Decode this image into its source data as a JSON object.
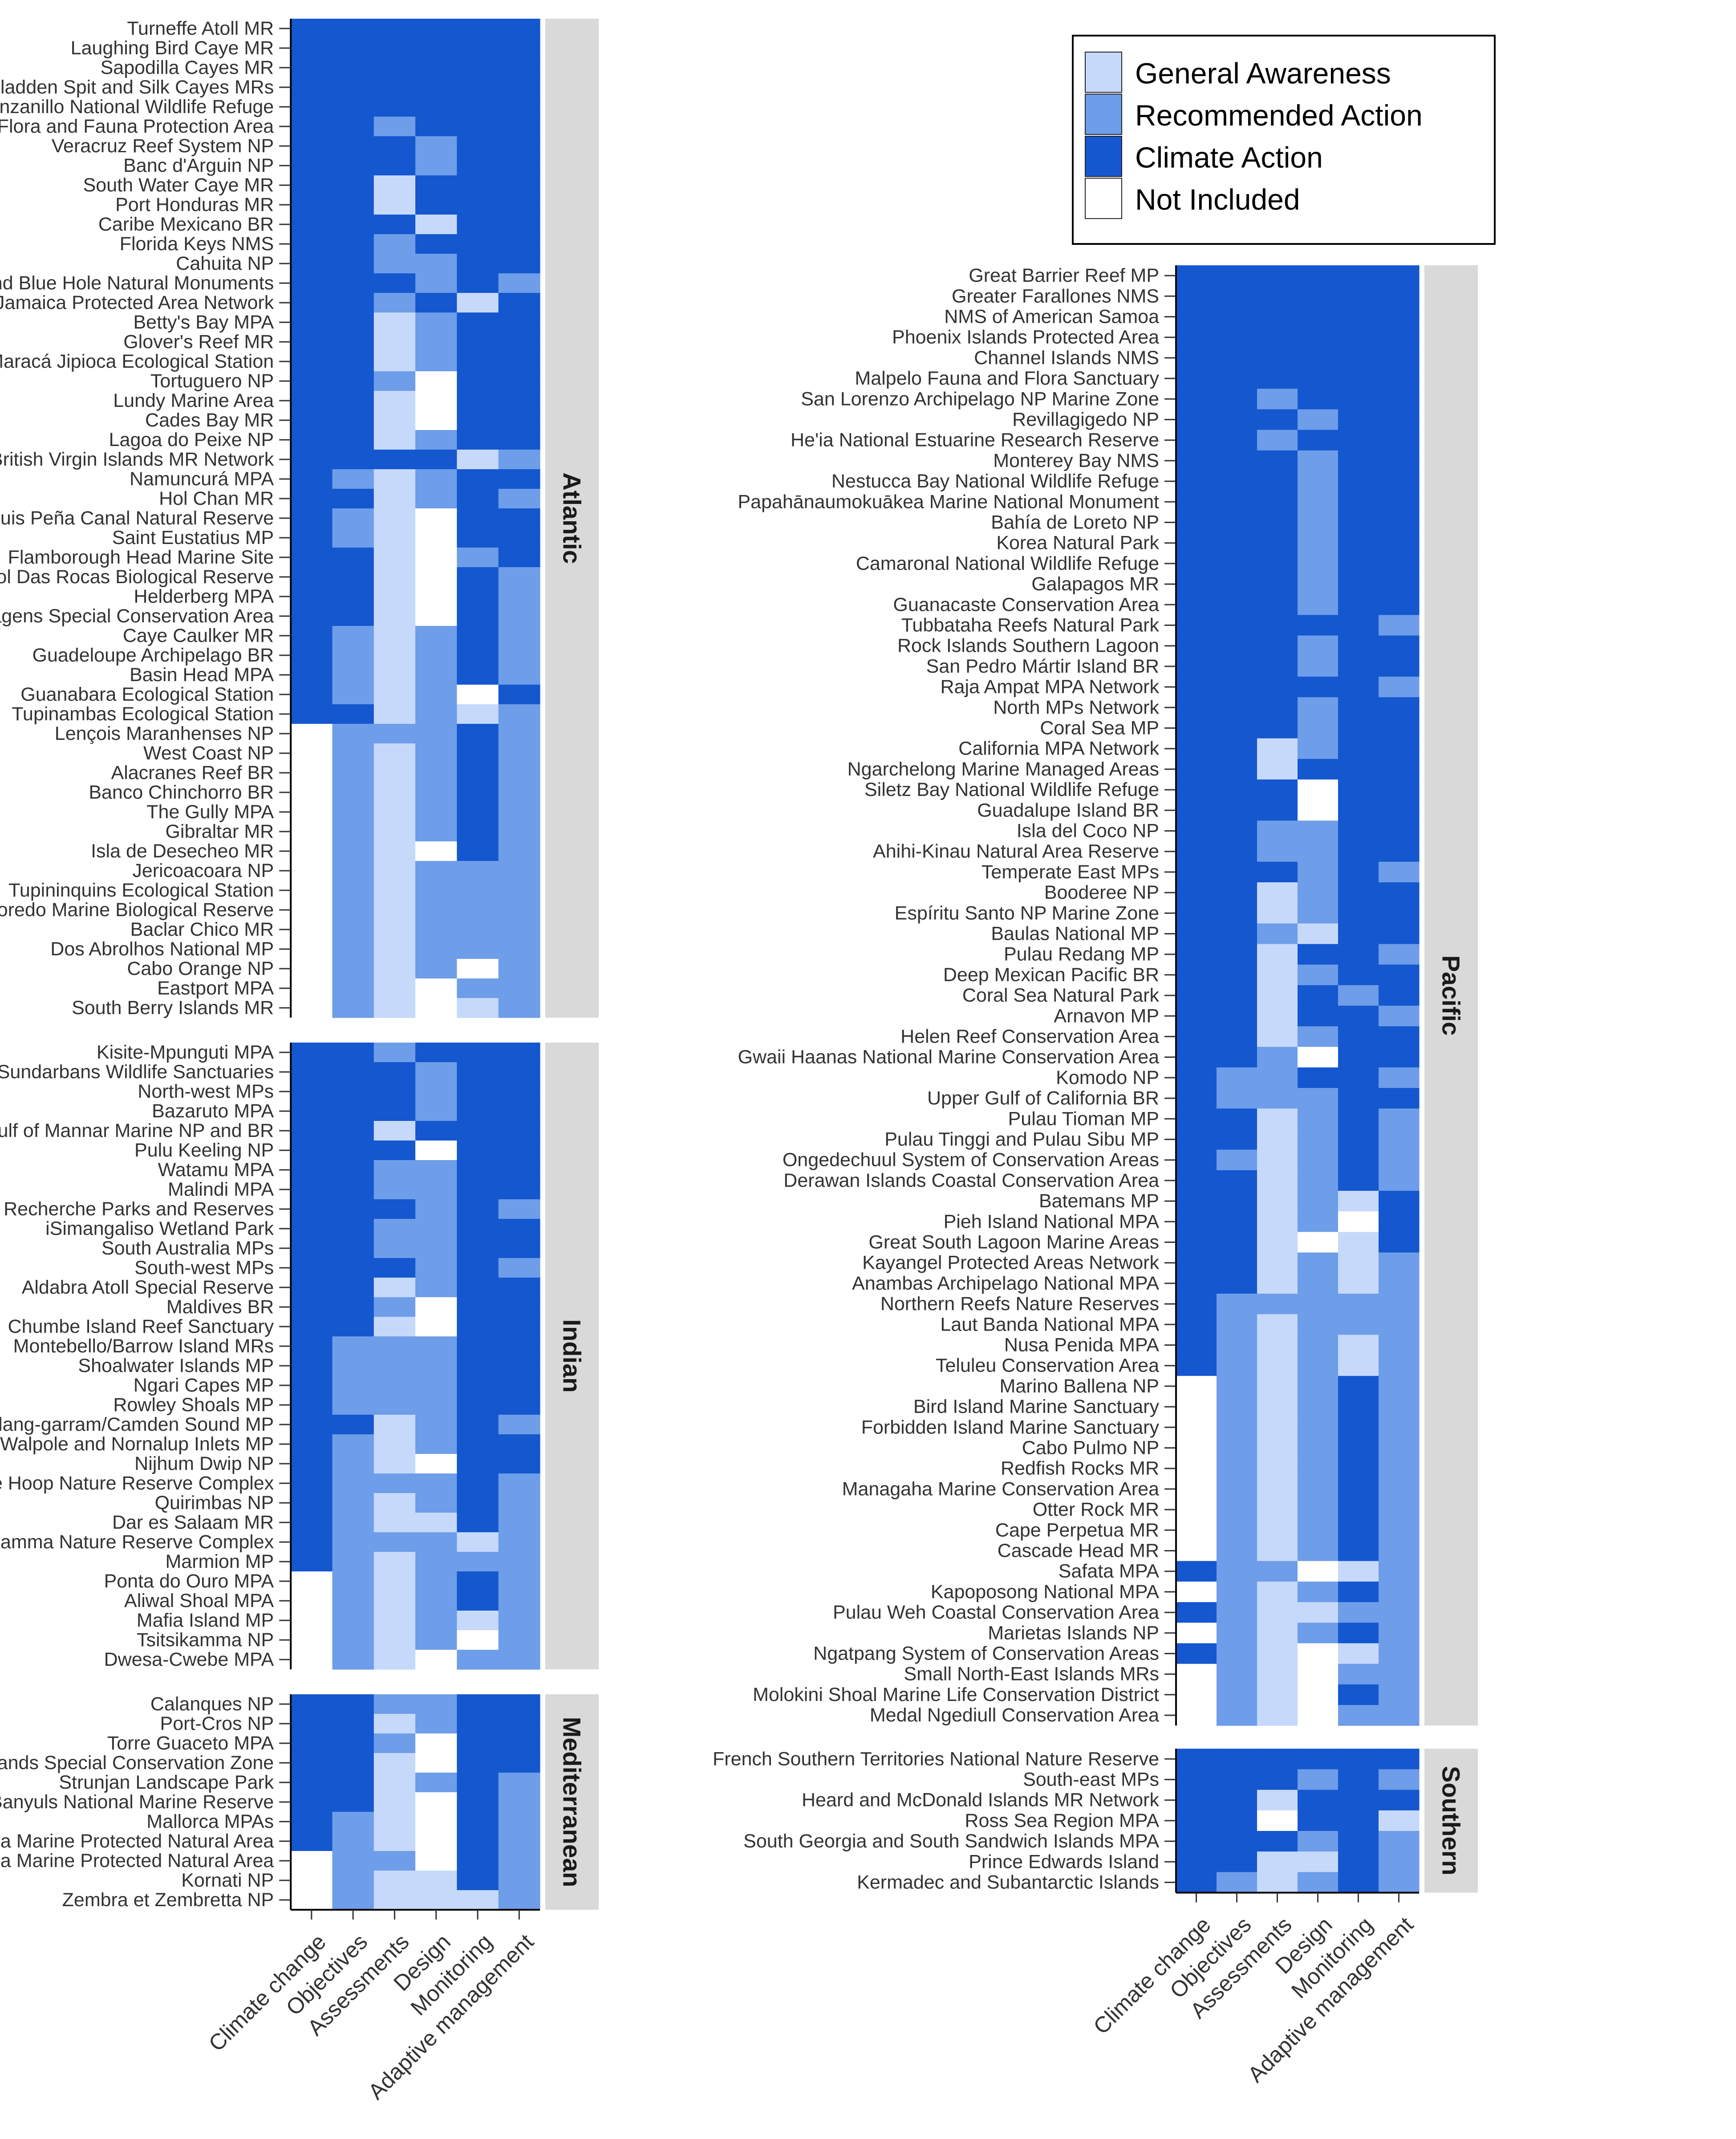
{
  "chart_data": {
    "type": "heatmap",
    "columns": [
      "Climate change",
      "Objectives",
      "Assessments",
      "Design",
      "Monitoring",
      "Adaptive management"
    ],
    "levels": [
      "General Awareness",
      "Recommended Action",
      "Climate Action",
      "Not Included"
    ],
    "level_codes": {
      "A": "General Awareness",
      "R": "Recommended Action",
      "C": "Climate Action",
      "N": "Not Included"
    },
    "colors": {
      "A": "#c6d9fb",
      "R": "#6e9de9",
      "C": "#1457cf",
      "N": "#ffffff"
    },
    "legend": {
      "placement": "top-right",
      "entries": [
        "General Awareness",
        "Recommended Action",
        "Climate Action",
        "Not Included"
      ]
    },
    "panels": [
      {
        "region": "Atlantic",
        "column": "left",
        "rows": [
          {
            "name": "Turneffe Atoll MR",
            "v": "CCCCCC"
          },
          {
            "name": "Laughing Bird Caye MR",
            "v": "CCCCCC"
          },
          {
            "name": "Sapodilla Cayes MR",
            "v": "CCCCCC"
          },
          {
            "name": "Gladden Spit and Silk Cayes MRs",
            "v": "CCCCCC"
          },
          {
            "name": "Gandoca Manzanillo National Wildlife Refuge",
            "v": "CCCCCC"
          },
          {
            "name": "North of Cozumel Flora and Fauna Protection Area",
            "v": "CCRCCC"
          },
          {
            "name": "Veracruz Reef System NP",
            "v": "CCCRCC"
          },
          {
            "name": "Banc d'Arguin NP",
            "v": "CCCRCC"
          },
          {
            "name": "South Water Caye MR",
            "v": "CCACCC"
          },
          {
            "name": "Port Honduras MR",
            "v": "CCACCC"
          },
          {
            "name": "Caribe Mexicano BR",
            "v": "CCCACC"
          },
          {
            "name": "Florida Keys NMS",
            "v": "CCRCCC"
          },
          {
            "name": "Cahuita NP",
            "v": "CCRRCC"
          },
          {
            "name": "Halfmoon Caye and Blue Hole Natural Monuments",
            "v": "CCCRCR"
          },
          {
            "name": "Jamaica Protected Area Network",
            "v": "CCRCAC"
          },
          {
            "name": "Betty's Bay MPA",
            "v": "CCARCC"
          },
          {
            "name": "Glover's Reef MR",
            "v": "CCARCC"
          },
          {
            "name": "Maracá Jipioca Ecological Station",
            "v": "CCARCC"
          },
          {
            "name": "Tortuguero NP",
            "v": "CCRNCC"
          },
          {
            "name": "Lundy Marine Area",
            "v": "CCANCC"
          },
          {
            "name": "Cades Bay MR",
            "v": "CCANCC"
          },
          {
            "name": "Lagoa do Peixe NP",
            "v": "CCARCC"
          },
          {
            "name": "British Virgin Islands MR Network",
            "v": "CCCCAR"
          },
          {
            "name": "Namuncurá MPA",
            "v": "CRARCC"
          },
          {
            "name": "Hol Chan MR",
            "v": "CCARCR"
          },
          {
            "name": "Luis Peña Canal Natural Reserve",
            "v": "CRANCC"
          },
          {
            "name": "Saint Eustatius MP",
            "v": "CRANCC"
          },
          {
            "name": "Flamborough Head Marine Site",
            "v": "CCANRC"
          },
          {
            "name": "Atol Das Rocas Biological Reserve",
            "v": "CCANCR"
          },
          {
            "name": "Helderberg MPA",
            "v": "CCANCR"
          },
          {
            "name": "Ilhas Selvagens Special Conservation Area",
            "v": "CCANCR"
          },
          {
            "name": "Caye Caulker MR",
            "v": "CRARCR"
          },
          {
            "name": "Guadeloupe Archipelago BR",
            "v": "CRARCR"
          },
          {
            "name": "Basin Head MPA",
            "v": "CRARCR"
          },
          {
            "name": "Guanabara Ecological Station",
            "v": "CRARNC"
          },
          {
            "name": "Tupinambas Ecological Station",
            "v": "CCARAR"
          },
          {
            "name": "Lençois Maranhenses NP",
            "v": "NRRRCR"
          },
          {
            "name": "West Coast NP",
            "v": "NRARCR"
          },
          {
            "name": "Alacranes Reef BR",
            "v": "NRARCR"
          },
          {
            "name": "Banco Chinchorro BR",
            "v": "NRARCR"
          },
          {
            "name": "The Gully MPA",
            "v": "NRARCR"
          },
          {
            "name": "Gibraltar MR",
            "v": "NRARCR"
          },
          {
            "name": "Isla de Desecheo MR",
            "v": "NRANCR"
          },
          {
            "name": "Jericoacoara NP",
            "v": "NRARRR"
          },
          {
            "name": "Tupininquins Ecological Station",
            "v": "NRARRR"
          },
          {
            "name": "Arvoredo Marine Biological Reserve",
            "v": "NRARRR"
          },
          {
            "name": "Baclar Chico MR",
            "v": "NRARRR"
          },
          {
            "name": "Dos Abrolhos National MP",
            "v": "NRARRR"
          },
          {
            "name": "Cabo Orange NP",
            "v": "NRARNR"
          },
          {
            "name": "Eastport MPA",
            "v": "NRANRR"
          },
          {
            "name": "South Berry Islands MR",
            "v": "NRANAR"
          }
        ]
      },
      {
        "region": "Indian",
        "column": "left",
        "rows": [
          {
            "name": "Kisite-Mpunguti MPA",
            "v": "CCRCCC"
          },
          {
            "name": "Sundarbans Wildlife Sanctuaries",
            "v": "CCCRCC"
          },
          {
            "name": "North-west MPs",
            "v": "CCCRCC"
          },
          {
            "name": "Bazaruto MPA",
            "v": "CCCRCC"
          },
          {
            "name": "Gulf of Mannar Marine NP and BR",
            "v": "CCACCC"
          },
          {
            "name": "Pulu Keeling NP",
            "v": "CCCNCC"
          },
          {
            "name": "Watamu MPA",
            "v": "CCRRCC"
          },
          {
            "name": "Malindi MPA",
            "v": "CCRRCC"
          },
          {
            "name": "Esperance and Recherche Parks and Reserves",
            "v": "CCCRCR"
          },
          {
            "name": "iSimangaliso Wetland Park",
            "v": "CCRRCC"
          },
          {
            "name": "South Australia MPs",
            "v": "CCRRCC"
          },
          {
            "name": "South-west MPs",
            "v": "CCCRCR"
          },
          {
            "name": "Aldabra Atoll Special Reserve",
            "v": "CCARCC"
          },
          {
            "name": "Maldives BR",
            "v": "CCRNCC"
          },
          {
            "name": "Chumbe Island Reef Sanctuary",
            "v": "CCANCC"
          },
          {
            "name": "Montebello/Barrow Island MRs",
            "v": "CRRRCC"
          },
          {
            "name": "Shoalwater Islands MP",
            "v": "CRRRCC"
          },
          {
            "name": "Ngari Capes MP",
            "v": "CRRRCC"
          },
          {
            "name": "Rowley Shoals MP",
            "v": "CRRRCC"
          },
          {
            "name": "Lalang-garram/Camden Sound MP",
            "v": "CCARCR"
          },
          {
            "name": "Walpole and Nornalup Inlets MP",
            "v": "CRARCC"
          },
          {
            "name": "Nijhum Dwip NP",
            "v": "CRANCC"
          },
          {
            "name": "De Hoop Nature Reserve Complex",
            "v": "CRRRCR"
          },
          {
            "name": "Quirimbas NP",
            "v": "CRARCR"
          },
          {
            "name": "Dar es Salaam MR",
            "v": "CRAACR"
          },
          {
            "name": "Goukamma Nature Reserve Complex",
            "v": "CRRRAR"
          },
          {
            "name": "Marmion MP",
            "v": "CRARRR"
          },
          {
            "name": "Ponta do Ouro MPA",
            "v": "NRARCR"
          },
          {
            "name": "Aliwal Shoal MPA",
            "v": "NRARCR"
          },
          {
            "name": "Mafia Island MP",
            "v": "NRARAR"
          },
          {
            "name": "Tsitsikamma NP",
            "v": "NRARNR"
          },
          {
            "name": "Dwesa-Cwebe MPA",
            "v": "NRANRR"
          }
        ]
      },
      {
        "region": "Mediterranean",
        "column": "left",
        "rows": [
          {
            "name": "Calanques NP",
            "v": "CCRRCC"
          },
          {
            "name": "Port-Cros NP",
            "v": "CCARCC"
          },
          {
            "name": "Torre Guaceto MPA",
            "v": "CCRNCC"
          },
          {
            "name": "Alboran Islands Special Conservation Zone",
            "v": "CCANCC"
          },
          {
            "name": "Strunjan Landscape Park",
            "v": "CCARCR"
          },
          {
            "name": "Cerbère-Banyuls National Marine Reserve",
            "v": "CCANCR"
          },
          {
            "name": "Mallorca MPAs",
            "v": "CRANCR"
          },
          {
            "name": "Tavolara Marine Protected Natural Area",
            "v": "CRANCR"
          },
          {
            "name": "Capo Caccia Marine Protected Natural Area",
            "v": "NRRNCR"
          },
          {
            "name": "Kornati NP",
            "v": "NRAACR"
          },
          {
            "name": "Zembra et Zembretta NP",
            "v": "NRAAAR"
          }
        ]
      },
      {
        "region": "Pacific",
        "column": "right",
        "rows": [
          {
            "name": "Great Barrier Reef MP",
            "v": "CCCCCC"
          },
          {
            "name": "Greater Farallones NMS",
            "v": "CCCCCC"
          },
          {
            "name": "NMS of American Samoa",
            "v": "CCCCCC"
          },
          {
            "name": "Phoenix Islands Protected Area",
            "v": "CCCCCC"
          },
          {
            "name": "Channel Islands NMS",
            "v": "CCCCCC"
          },
          {
            "name": "Malpelo Fauna and Flora Sanctuary",
            "v": "CCCCCC"
          },
          {
            "name": "San Lorenzo Archipelago NP Marine Zone",
            "v": "CCRCCC"
          },
          {
            "name": "Revillagigedo NP",
            "v": "CCCRCC"
          },
          {
            "name": "He'ia National Estuarine Research Reserve",
            "v": "CCRCCC"
          },
          {
            "name": "Monterey Bay NMS",
            "v": "CCCRCC"
          },
          {
            "name": "Nestucca Bay National Wildlife Refuge",
            "v": "CCCRCC"
          },
          {
            "name": "Papahānaumokuākea Marine National Monument",
            "v": "CCCRCC"
          },
          {
            "name": "Bahía de Loreto NP",
            "v": "CCCRCC"
          },
          {
            "name": "Korea Natural Park",
            "v": "CCCRCC"
          },
          {
            "name": "Camaronal National Wildlife Refuge",
            "v": "CCCRCC"
          },
          {
            "name": "Galapagos MR",
            "v": "CCCRCC"
          },
          {
            "name": "Guanacaste Conservation Area",
            "v": "CCCRCC"
          },
          {
            "name": "Tubbataha Reefs Natural Park",
            "v": "CCCCCR"
          },
          {
            "name": "Rock Islands Southern Lagoon",
            "v": "CCCRCC"
          },
          {
            "name": "San Pedro Mártir Island BR",
            "v": "CCCRCC"
          },
          {
            "name": "Raja Ampat MPA Network",
            "v": "CCCCCR"
          },
          {
            "name": "North MPs Network",
            "v": "CCCRCC"
          },
          {
            "name": "Coral Sea MP",
            "v": "CCCRCC"
          },
          {
            "name": "California MPA Network",
            "v": "CCARCC"
          },
          {
            "name": "Ngarchelong Marine Managed Areas",
            "v": "CCACCC"
          },
          {
            "name": "Siletz Bay National Wildlife Refuge",
            "v": "CCCNCC"
          },
          {
            "name": "Guadalupe Island BR",
            "v": "CCCNCC"
          },
          {
            "name": "Isla del Coco NP",
            "v": "CCRRCC"
          },
          {
            "name": "Ahihi-Kinau Natural Area Reserve",
            "v": "CCRRCC"
          },
          {
            "name": "Temperate East MPs",
            "v": "CCCRCR"
          },
          {
            "name": "Booderee NP",
            "v": "CCARCC"
          },
          {
            "name": "Espíritu Santo NP Marine Zone",
            "v": "CCARCC"
          },
          {
            "name": "Baulas National MP",
            "v": "CCRACC"
          },
          {
            "name": "Pulau Redang MP",
            "v": "CCACCR"
          },
          {
            "name": "Deep Mexican Pacific BR",
            "v": "CCARCC"
          },
          {
            "name": "Coral Sea Natural Park",
            "v": "CCACRC"
          },
          {
            "name": "Arnavon MP",
            "v": "CCACCR"
          },
          {
            "name": "Helen Reef Conservation Area",
            "v": "CCARCC"
          },
          {
            "name": "Gwaii Haanas National Marine Conservation Area",
            "v": "CCRNCC"
          },
          {
            "name": "Komodo NP",
            "v": "CRRCCR"
          },
          {
            "name": "Upper Gulf of California BR",
            "v": "CRRRCC"
          },
          {
            "name": "Pulau Tioman MP",
            "v": "CCARCR"
          },
          {
            "name": "Pulau Tinggi and Pulau Sibu MP",
            "v": "CCARCR"
          },
          {
            "name": "Ongedechuul System of Conservation Areas",
            "v": "CRARCR"
          },
          {
            "name": "Derawan Islands Coastal Conservation Area",
            "v": "CCARCR"
          },
          {
            "name": "Batemans MP",
            "v": "CCARAC"
          },
          {
            "name": "Pieh Island National MPA",
            "v": "CCARNC"
          },
          {
            "name": "Great South Lagoon Marine Areas",
            "v": "CCANAC"
          },
          {
            "name": "Kayangel Protected Areas Network",
            "v": "CCARAR"
          },
          {
            "name": "Anambas Archipelago National MPA",
            "v": "CCARAR"
          },
          {
            "name": "Northern Reefs Nature Reserves",
            "v": "CRRRRR"
          },
          {
            "name": "Laut Banda National MPA",
            "v": "CRARRR"
          },
          {
            "name": "Nusa Penida MPA",
            "v": "CRARAR"
          },
          {
            "name": "Teluleu Conservation Area",
            "v": "CRARAR"
          },
          {
            "name": "Marino Ballena NP",
            "v": "NRARCR"
          },
          {
            "name": "Bird Island Marine Sanctuary",
            "v": "NRARCR"
          },
          {
            "name": "Forbidden Island Marine Sanctuary",
            "v": "NRARCR"
          },
          {
            "name": "Cabo Pulmo NP",
            "v": "NRARCR"
          },
          {
            "name": "Redfish Rocks MR",
            "v": "NRARCR"
          },
          {
            "name": "Managaha Marine Conservation Area",
            "v": "NRARCR"
          },
          {
            "name": "Otter Rock MR",
            "v": "NRARCR"
          },
          {
            "name": "Cape Perpetua MR",
            "v": "NRARCR"
          },
          {
            "name": "Cascade Head MR",
            "v": "NRARCR"
          },
          {
            "name": "Safata MPA",
            "v": "CRRNAR"
          },
          {
            "name": "Kapoposong National MPA",
            "v": "NRARCR"
          },
          {
            "name": "Pulau Weh Coastal Conservation Area",
            "v": "CRAARR"
          },
          {
            "name": "Marietas Islands NP",
            "v": "NRARCR"
          },
          {
            "name": "Ngatpang System of Conservation Areas",
            "v": "CRANAR"
          },
          {
            "name": "Small North-East Islands MRs",
            "v": "NRANRR"
          },
          {
            "name": "Molokini Shoal Marine Life Conservation District",
            "v": "NRANCR"
          },
          {
            "name": "Medal Ngediull Conservation Area",
            "v": "NRANRR"
          }
        ]
      },
      {
        "region": "Southern",
        "column": "right",
        "rows": [
          {
            "name": "French Southern Territories National Nature Reserve",
            "v": "CCCCCC"
          },
          {
            "name": "South-east MPs",
            "v": "CCCRCR"
          },
          {
            "name": "Heard and McDonald Islands MR Network",
            "v": "CCACCC"
          },
          {
            "name": "Ross Sea Region MPA",
            "v": "CCNCCA"
          },
          {
            "name": "South Georgia and South Sandwich Islands MPA",
            "v": "CCCRCR"
          },
          {
            "name": "Prince Edwards Island",
            "v": "CCAACR"
          },
          {
            "name": "Kermadec and Subantarctic Islands",
            "v": "CRARCR"
          }
        ]
      }
    ]
  }
}
